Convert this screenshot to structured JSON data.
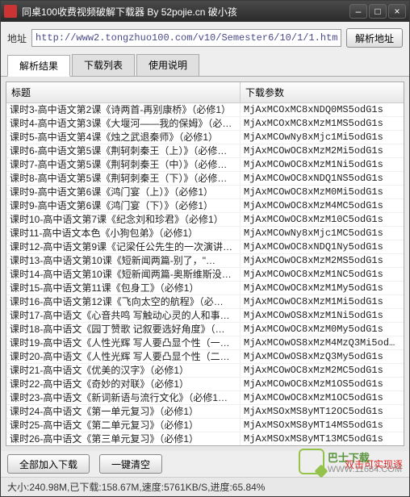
{
  "window": {
    "title": "同桌100收费视频破解下载器 By 52pojie.cn 破小孩"
  },
  "address": {
    "label": "地址",
    "value": "http://www2.tongzhuo100.com/v10/Semester6/10/1/1.html",
    "parse_btn": "解析地址"
  },
  "tabs": [
    "解析结果",
    "下载列表",
    "使用说明"
  ],
  "columns": {
    "title": "标题",
    "param": "下载参数"
  },
  "rows": [
    {
      "t": "课时3-高中语文第2课《诗两首-再别康桥》（必修1）",
      "p": "MjAxMCOxMC8xNDQ0MS5odG1s"
    },
    {
      "t": "课时4-高中语文第3课《大堰河——我的保姆》（必…",
      "p": "MjAxMCOxMC8xMzM1MS5odG1s"
    },
    {
      "t": "课时5-高中语文第4课《烛之武退秦师》（必修1）",
      "p": "MjAxMCOwNy8xMjc1Mi5odG1s"
    },
    {
      "t": "课时6-高中语文第5课《荆轲刺秦王（上）》（必修…",
      "p": "MjAxMCOwOC8xMzM2Mi5odG1s"
    },
    {
      "t": "课时7-高中语文第5课《荆轲刺秦王（中）》（必修…",
      "p": "MjAxMCOwOC8xMzM1Ni5odG1s"
    },
    {
      "t": "课时8-高中语文第5课《荆轲刺秦王（下）》（必修…",
      "p": "MjAxMCOwOC8xNDQ1NS5odG1s"
    },
    {
      "t": "课时9-高中语文第6课《鸿门宴（上）》（必修1）",
      "p": "MjAxMCOwOC8xMzM0Mi5odG1s"
    },
    {
      "t": "课时9-高中语文第6课《鸿门宴（下）》（必修1）",
      "p": "MjAxMCOwOC8xMzM4MC5odG1s"
    },
    {
      "t": "课时10-高中语文第7课《纪念刘和珍君》（必修1）",
      "p": "MjAxMCOwOC8xMzM10C5odG1s"
    },
    {
      "t": "课时11-高中语文本色《小狗包弟》（必修1）",
      "p": "MjAxMCOwNy8xMjc1MC5odG1s"
    },
    {
      "t": "课时12-高中语文第9课《记梁任公先生的一次演讲…",
      "p": "MjAxMCOwOC8xNDQ1Ny5odG1s"
    },
    {
      "t": "课时13-高中语文第10课《短新闻两篇-别了，\"…",
      "p": "MjAxMCOwOC8xMzM2MS5odG1s"
    },
    {
      "t": "课时14-高中语文第10课《短新闻两篇-奥斯维斯没…",
      "p": "MjAxMCOwOC8xMzM1NC5odG1s"
    },
    {
      "t": "课时15-高中语文第11课《包身工》（必修1）",
      "p": "MjAxMCOwOC8xMzM1My5odG1s"
    },
    {
      "t": "课时16-高中语文第12课《飞向太空的航程》（必…",
      "p": "MjAxMCOwOC8xMzM1Mi5odG1s"
    },
    {
      "t": "课时17-高中语文《心音共鸣 写触动心灵的人和事…",
      "p": "MjAxMCOwOS8xMzM1Ni5odG1s"
    },
    {
      "t": "课时18-高中语文《园丁赞歌 记叙要选好角度》（…",
      "p": "MjAxMCOwOC8xMzM0My5odG1s"
    },
    {
      "t": "课时19-高中语文《人性光辉 写人要凸显个性（一…",
      "p": "MjAxMCOwOS8xMzM4MzQ3Mi5odG1s"
    },
    {
      "t": "课时20-高中语文《人性光辉 写人要凸显个性（二…",
      "p": "MjAxMCOwOS8xMzQ3My5odG1s"
    },
    {
      "t": "课时21-高中语文《优美的汉字》（必修1）",
      "p": "MjAxMCOwOC8xMzM2MC5odG1s"
    },
    {
      "t": "课时22-高中语文《奇妙的对联》（必修1）",
      "p": "MjAxMCOwOC8xMzM1OS5odG1s"
    },
    {
      "t": "课时23-高中语文《新词新语与流行文化》（必修1…",
      "p": "MjAxMCOwOC8xMzM1OC5odG1s"
    },
    {
      "t": "课时24-高中语文《第一单元复习》（必修1）",
      "p": "MjAxMSOxMS8yMT12OC5odG1s"
    },
    {
      "t": "课时25-高中语文《第二单元复习》（必修1）",
      "p": "MjAxMSOxMS8yMT14MS5odG1s"
    },
    {
      "t": "课时26-高中语文《第三单元复习》（必修1）",
      "p": "MjAxMSOxMS8yMT13MC5odG1s"
    },
    {
      "t": "课时27-高中语文《第四单元复习》（必修1）",
      "p": "MjAxMSOxMS8yMT13MS5odG1s"
    }
  ],
  "buttons": {
    "add_all": "全部加入下载",
    "clear": "一键清空",
    "hint": "双击可实现逐"
  },
  "status": "大小:240.98M,已下载:158.67M,速度:5761KB/S,进度:65.84%",
  "watermark": {
    "brand": "巴士下载",
    "url": "WWW.11684.COM"
  }
}
